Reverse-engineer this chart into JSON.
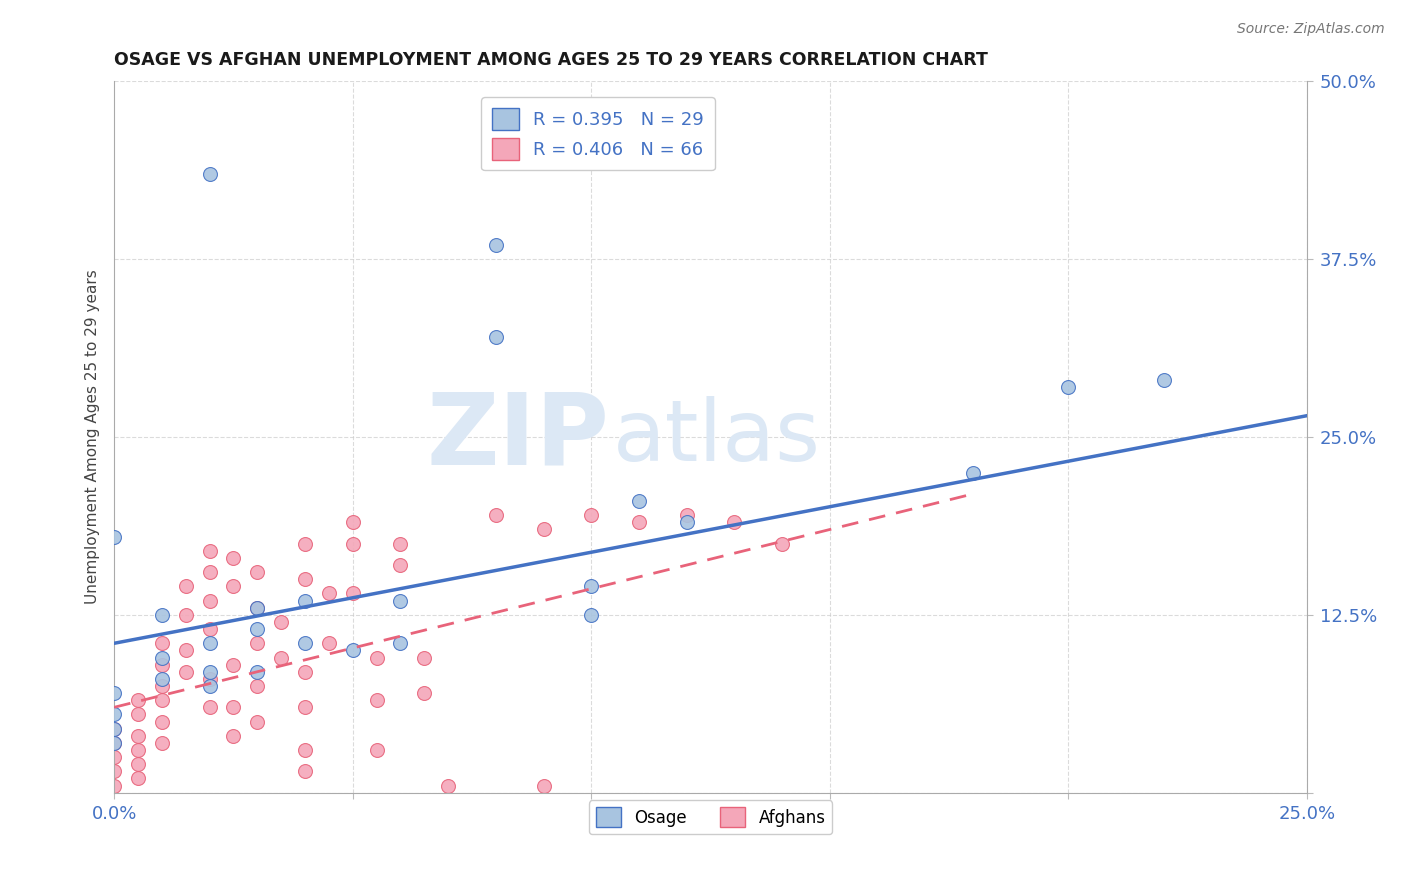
{
  "title": "OSAGE VS AFGHAN UNEMPLOYMENT AMONG AGES 25 TO 29 YEARS CORRELATION CHART",
  "source": "Source: ZipAtlas.com",
  "ylabel": "Unemployment Among Ages 25 to 29 years",
  "xlim": [
    0.0,
    0.25
  ],
  "ylim": [
    0.0,
    0.5
  ],
  "xticks": [
    0.0,
    0.05,
    0.1,
    0.15,
    0.2,
    0.25
  ],
  "yticks": [
    0.0,
    0.125,
    0.25,
    0.375,
    0.5
  ],
  "osage_R": 0.395,
  "osage_N": 29,
  "afghan_R": 0.406,
  "afghan_N": 66,
  "osage_color": "#a8c4e0",
  "osage_line_color": "#4472c4",
  "afghan_color": "#f4a7b9",
  "afghan_line_color": "#e8637a",
  "watermark_zip": "ZIP",
  "watermark_atlas": "atlas",
  "background_color": "#ffffff",
  "osage_line_x": [
    0.0,
    0.25
  ],
  "osage_line_y": [
    0.105,
    0.265
  ],
  "afghan_line_x": [
    0.0,
    0.18
  ],
  "afghan_line_y": [
    0.06,
    0.21
  ],
  "osage_points": [
    [
      0.02,
      0.435
    ],
    [
      0.08,
      0.385
    ],
    [
      0.08,
      0.32
    ],
    [
      0.0,
      0.18
    ],
    [
      0.0,
      0.07
    ],
    [
      0.0,
      0.055
    ],
    [
      0.0,
      0.045
    ],
    [
      0.0,
      0.035
    ],
    [
      0.01,
      0.125
    ],
    [
      0.01,
      0.095
    ],
    [
      0.01,
      0.08
    ],
    [
      0.02,
      0.105
    ],
    [
      0.02,
      0.085
    ],
    [
      0.02,
      0.075
    ],
    [
      0.03,
      0.13
    ],
    [
      0.03,
      0.115
    ],
    [
      0.03,
      0.085
    ],
    [
      0.04,
      0.135
    ],
    [
      0.04,
      0.105
    ],
    [
      0.05,
      0.1
    ],
    [
      0.06,
      0.135
    ],
    [
      0.06,
      0.105
    ],
    [
      0.1,
      0.145
    ],
    [
      0.1,
      0.125
    ],
    [
      0.11,
      0.205
    ],
    [
      0.12,
      0.19
    ],
    [
      0.18,
      0.225
    ],
    [
      0.2,
      0.285
    ],
    [
      0.22,
      0.29
    ]
  ],
  "afghan_points": [
    [
      0.0,
      0.045
    ],
    [
      0.0,
      0.035
    ],
    [
      0.0,
      0.025
    ],
    [
      0.0,
      0.015
    ],
    [
      0.0,
      0.005
    ],
    [
      0.005,
      0.065
    ],
    [
      0.005,
      0.055
    ],
    [
      0.005,
      0.04
    ],
    [
      0.005,
      0.03
    ],
    [
      0.005,
      0.02
    ],
    [
      0.005,
      0.01
    ],
    [
      0.01,
      0.105
    ],
    [
      0.01,
      0.09
    ],
    [
      0.01,
      0.075
    ],
    [
      0.01,
      0.065
    ],
    [
      0.01,
      0.05
    ],
    [
      0.01,
      0.035
    ],
    [
      0.015,
      0.145
    ],
    [
      0.015,
      0.125
    ],
    [
      0.015,
      0.1
    ],
    [
      0.015,
      0.085
    ],
    [
      0.02,
      0.17
    ],
    [
      0.02,
      0.155
    ],
    [
      0.02,
      0.135
    ],
    [
      0.02,
      0.115
    ],
    [
      0.02,
      0.08
    ],
    [
      0.02,
      0.06
    ],
    [
      0.025,
      0.165
    ],
    [
      0.025,
      0.145
    ],
    [
      0.025,
      0.09
    ],
    [
      0.025,
      0.06
    ],
    [
      0.025,
      0.04
    ],
    [
      0.03,
      0.155
    ],
    [
      0.03,
      0.13
    ],
    [
      0.03,
      0.105
    ],
    [
      0.03,
      0.075
    ],
    [
      0.03,
      0.05
    ],
    [
      0.035,
      0.12
    ],
    [
      0.035,
      0.095
    ],
    [
      0.04,
      0.175
    ],
    [
      0.04,
      0.15
    ],
    [
      0.04,
      0.085
    ],
    [
      0.04,
      0.06
    ],
    [
      0.04,
      0.03
    ],
    [
      0.04,
      0.015
    ],
    [
      0.045,
      0.14
    ],
    [
      0.045,
      0.105
    ],
    [
      0.05,
      0.19
    ],
    [
      0.05,
      0.175
    ],
    [
      0.05,
      0.14
    ],
    [
      0.055,
      0.095
    ],
    [
      0.055,
      0.065
    ],
    [
      0.055,
      0.03
    ],
    [
      0.06,
      0.175
    ],
    [
      0.06,
      0.16
    ],
    [
      0.065,
      0.095
    ],
    [
      0.065,
      0.07
    ],
    [
      0.07,
      0.005
    ],
    [
      0.08,
      0.195
    ],
    [
      0.09,
      0.185
    ],
    [
      0.1,
      0.195
    ],
    [
      0.11,
      0.19
    ],
    [
      0.12,
      0.195
    ],
    [
      0.13,
      0.19
    ],
    [
      0.14,
      0.175
    ],
    [
      0.09,
      0.005
    ]
  ]
}
